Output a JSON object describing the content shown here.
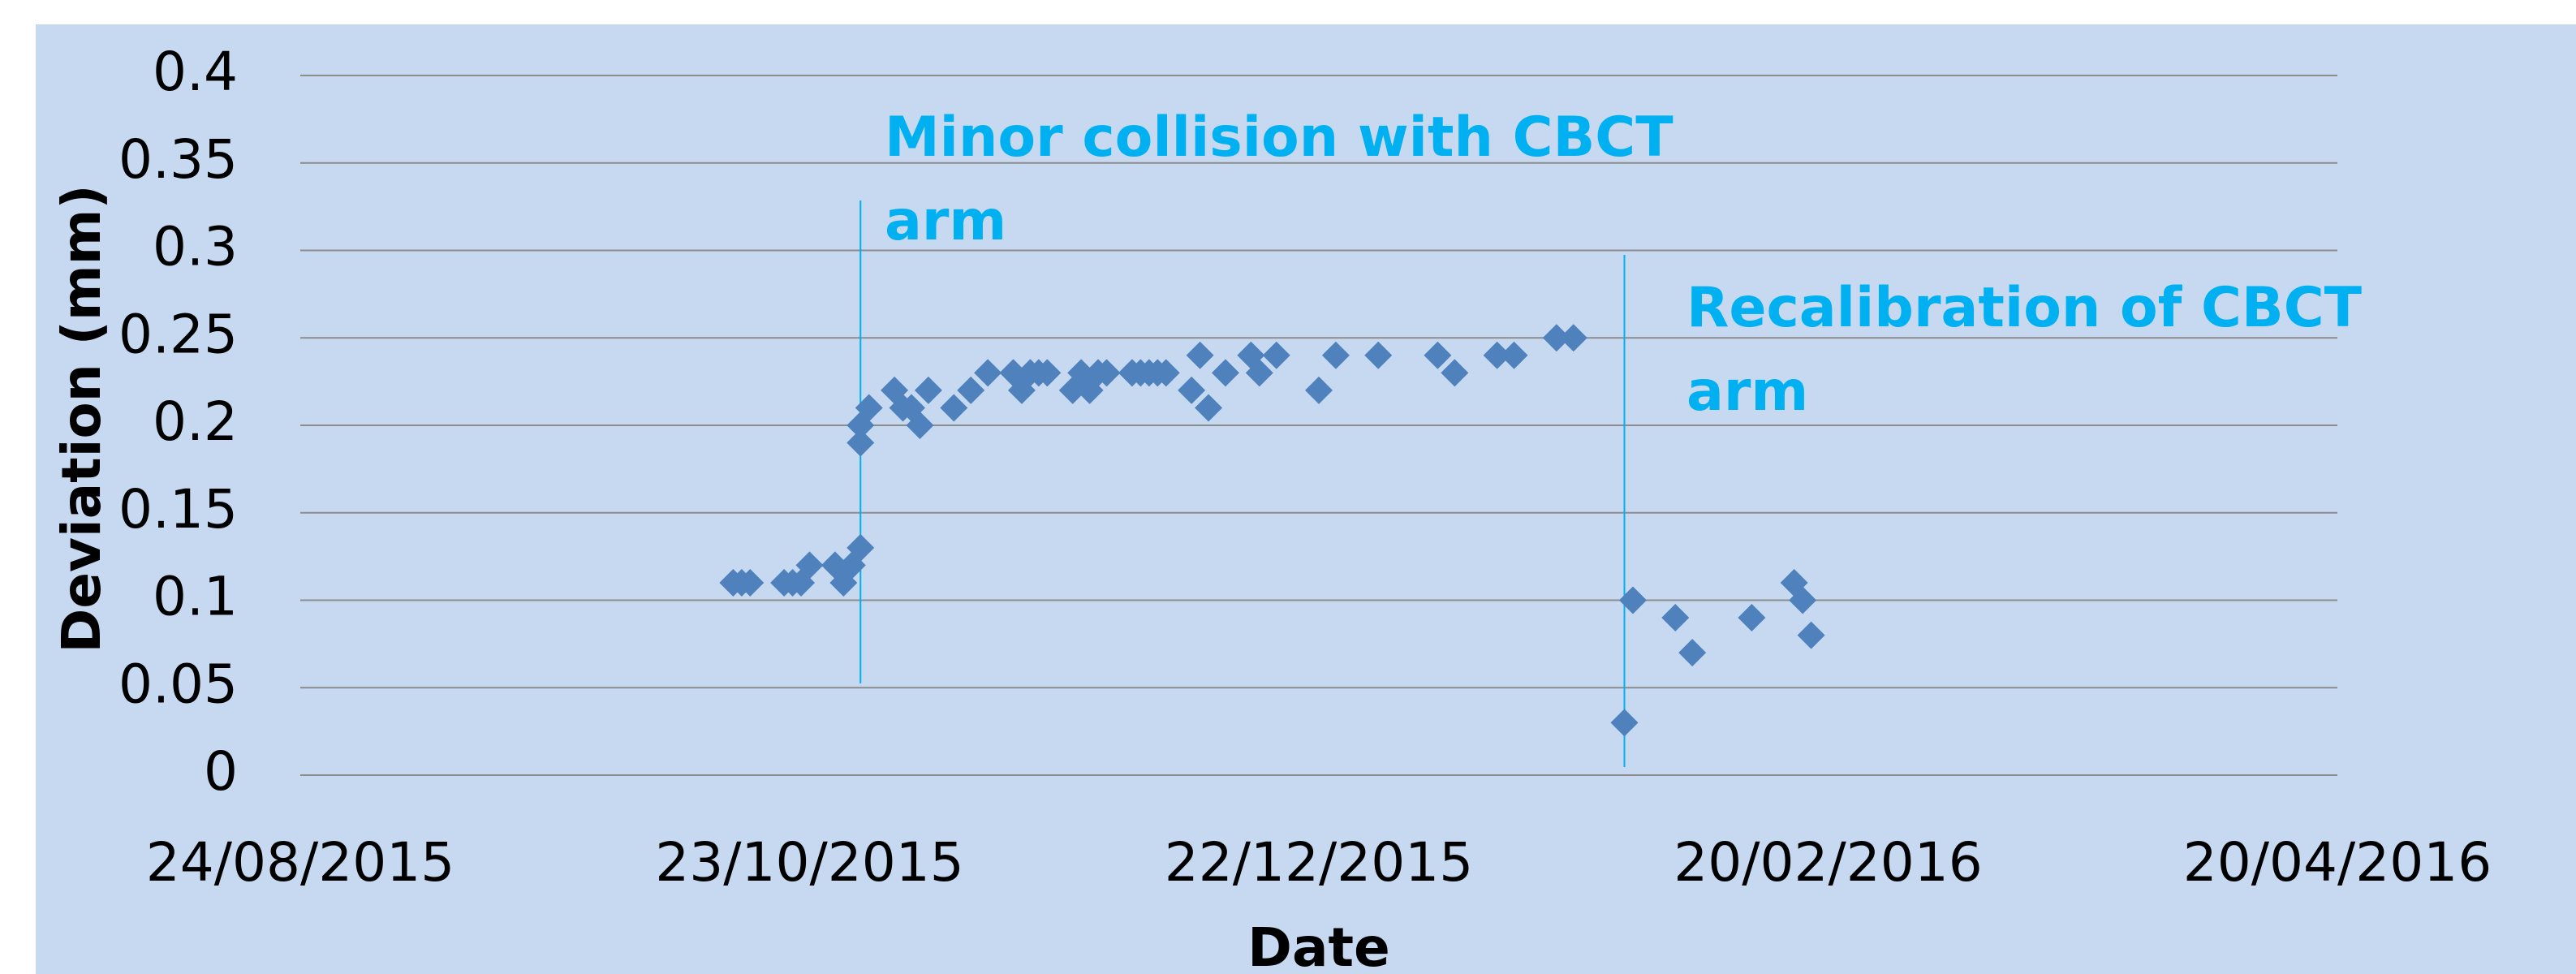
{
  "chart_data": {
    "type": "scatter",
    "xlabel": "Date",
    "ylabel": "Deviation (mm)",
    "xlim": [
      "2015-08-24",
      "2016-04-20"
    ],
    "xticks": [
      {
        "value": "2015-08-24",
        "label": "24/08/2015"
      },
      {
        "value": "2015-10-23",
        "label": "23/10/2015"
      },
      {
        "value": "2015-12-22",
        "label": "22/12/2015"
      },
      {
        "value": "2016-02-20",
        "label": "20/02/2016"
      },
      {
        "value": "2016-04-20",
        "label": "20/04/2016"
      }
    ],
    "ylim": [
      0,
      0.4
    ],
    "yticks": [
      0,
      0.05,
      0.1,
      0.15,
      0.2,
      0.25,
      0.3,
      0.35,
      0.4
    ],
    "grid": true,
    "color": "#4f81bd",
    "x": [
      "2015-10-14",
      "2015-10-15",
      "2015-10-16",
      "2015-10-20",
      "2015-10-21",
      "2015-10-22",
      "2015-10-23",
      "2015-10-26",
      "2015-10-27",
      "2015-10-28",
      "2015-10-29",
      "2015-10-29",
      "2015-10-29",
      "2015-10-30",
      "2015-11-02",
      "2015-11-03",
      "2015-11-04",
      "2015-11-05",
      "2015-11-06",
      "2015-11-09",
      "2015-11-11",
      "2015-11-13",
      "2015-11-16",
      "2015-11-17",
      "2015-11-18",
      "2015-11-19",
      "2015-11-20",
      "2015-11-23",
      "2015-11-24",
      "2015-11-25",
      "2015-11-26",
      "2015-11-27",
      "2015-11-30",
      "2015-12-01",
      "2015-12-02",
      "2015-12-03",
      "2015-12-04",
      "2015-12-07",
      "2015-12-08",
      "2015-12-09",
      "2015-12-11",
      "2015-12-14",
      "2015-12-15",
      "2015-12-17",
      "2015-12-22",
      "2015-12-24",
      "2015-12-29",
      "2016-01-05",
      "2016-01-07",
      "2016-01-12",
      "2016-01-14",
      "2016-01-19",
      "2016-01-21",
      "2016-01-27",
      "2016-01-28",
      "2016-02-02",
      "2016-02-04",
      "2016-02-11",
      "2016-02-16",
      "2016-02-17",
      "2016-02-18"
    ],
    "values": [
      0.11,
      0.11,
      0.11,
      0.11,
      0.11,
      0.11,
      0.12,
      0.12,
      0.11,
      0.12,
      0.13,
      0.19,
      0.2,
      0.21,
      0.22,
      0.21,
      0.21,
      0.2,
      0.22,
      0.21,
      0.22,
      0.23,
      0.23,
      0.22,
      0.23,
      0.23,
      0.23,
      0.22,
      0.23,
      0.22,
      0.23,
      0.23,
      0.23,
      0.23,
      0.23,
      0.23,
      0.23,
      0.22,
      0.24,
      0.21,
      0.23,
      0.24,
      0.23,
      0.24,
      0.22,
      0.24,
      0.24,
      0.24,
      0.23,
      0.24,
      0.24,
      0.25,
      0.25,
      0.03,
      0.1,
      0.09,
      0.07,
      0.09,
      0.11,
      0.1,
      0.08
    ],
    "annotations": [
      {
        "text": "Minor collision with CBCT arm",
        "x": "2015-10-29"
      },
      {
        "text": "Recalibration of CBCT arm",
        "x": "2016-01-27"
      }
    ]
  }
}
